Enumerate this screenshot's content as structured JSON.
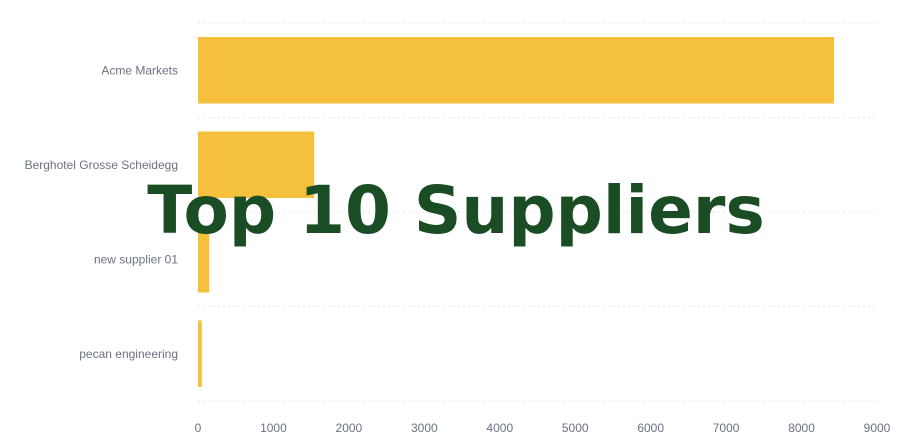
{
  "overlay": {
    "title": "Top 10 Suppliers"
  },
  "chart_data": {
    "type": "bar",
    "orientation": "horizontal",
    "title": "",
    "xlabel": "",
    "ylabel": "",
    "categories": [
      "Acme Markets",
      "Berghotel Grosse Scheidegg",
      "new supplier 01",
      "pecan engineering"
    ],
    "values": [
      8430,
      1540,
      150,
      50
    ],
    "xlim": [
      0,
      9000
    ],
    "xticks": [
      0,
      1000,
      2000,
      3000,
      4000,
      5000,
      6000,
      7000,
      8000,
      9000
    ],
    "grid": "horizontal-dashed",
    "legend": "none",
    "bar_color": "#f5c13d"
  }
}
